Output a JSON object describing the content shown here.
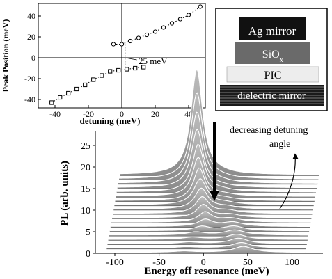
{
  "chart_data": [
    {
      "id": "inset",
      "type": "scatter",
      "xlabel": "detuning (meV)",
      "ylabel": "Peak Position (meV)",
      "xlim": [
        -50,
        50
      ],
      "ylim": [
        -48,
        52
      ],
      "x_ticks": [
        -40,
        -20,
        0,
        20,
        40
      ],
      "x_tick_labels": [
        "-40",
        "-20",
        "0",
        "20",
        "40"
      ],
      "y_ticks": [
        -40,
        -20,
        0,
        20,
        40
      ],
      "y_tick_labels": [
        "-40",
        "-20",
        "0",
        "20",
        "40"
      ],
      "annotation": "25 meV",
      "series": [
        {
          "marker": "circle",
          "points": [
            [
              -5,
              13
            ],
            [
              0,
              13
            ],
            [
              5,
              16
            ],
            [
              10,
              19
            ],
            [
              15,
              22
            ],
            [
              20,
              25
            ],
            [
              25,
              29
            ],
            [
              30,
              33
            ],
            [
              35,
              37
            ],
            [
              40,
              41
            ],
            [
              47,
              49
            ]
          ]
        },
        {
          "marker": "square",
          "points": [
            [
              -42,
              -43
            ],
            [
              -37,
              -38
            ],
            [
              -32,
              -34
            ],
            [
              -27,
              -30
            ],
            [
              -22,
              -26
            ],
            [
              -17,
              -21
            ],
            [
              -12,
              -17
            ],
            [
              -7,
              -13
            ],
            [
              -2,
              -12
            ],
            [
              3,
              -11
            ],
            [
              8,
              -10
            ],
            [
              13,
              -9
            ]
          ]
        }
      ]
    },
    {
      "id": "main",
      "type": "area",
      "xlabel": "Energy off resonance (meV)",
      "ylabel": "PL (arb. units)",
      "xlim": [
        -122,
        135
      ],
      "ylim": [
        0,
        28
      ],
      "x_ticks": [
        -100,
        -50,
        0,
        50,
        100
      ],
      "x_tick_labels": [
        "-100",
        "-50",
        "0",
        "50",
        "100"
      ],
      "y_ticks": [
        0,
        5,
        10,
        15,
        20,
        25
      ],
      "y_tick_labels": [
        "0",
        "5",
        "10",
        "15",
        "20",
        "25"
      ],
      "grid": false,
      "annotation": "decreasing detuning angle",
      "spectra_x_range": [
        -110,
        115
      ],
      "traces": [
        {
          "offset": 0,
          "peaks": [
            {
              "center": -22,
              "height": 0.3,
              "width": 14
            },
            {
              "center": 45,
              "height": 1.4,
              "width": 13
            }
          ]
        },
        {
          "offset": 1,
          "peaks": [
            {
              "center": -20,
              "height": 0.3,
              "width": 14
            },
            {
              "center": 42,
              "height": 1.3,
              "width": 13
            }
          ]
        },
        {
          "offset": 2,
          "peaks": [
            {
              "center": -18,
              "height": 0.4,
              "width": 13
            },
            {
              "center": 38,
              "height": 1.3,
              "width": 13
            }
          ]
        },
        {
          "offset": 3,
          "peaks": [
            {
              "center": -15,
              "height": 0.5,
              "width": 13
            },
            {
              "center": 35,
              "height": 1.2,
              "width": 13
            }
          ]
        },
        {
          "offset": 4,
          "peaks": [
            {
              "center": -12,
              "height": 0.7,
              "width": 12
            },
            {
              "center": 32,
              "height": 1.2,
              "width": 14
            }
          ]
        },
        {
          "offset": 5,
          "peaks": [
            {
              "center": -6,
              "height": 1.0,
              "width": 11
            },
            {
              "center": 30,
              "height": 1.1,
              "width": 14
            }
          ]
        },
        {
          "offset": 6,
          "peaks": [
            {
              "center": -3,
              "height": 1.6,
              "width": 10
            },
            {
              "center": 28,
              "height": 1.0,
              "width": 14
            }
          ]
        },
        {
          "offset": 7,
          "peaks": [
            {
              "center": -4,
              "height": 2.3,
              "width": 9
            },
            {
              "center": 25,
              "height": 0.9,
              "width": 15
            }
          ]
        },
        {
          "offset": 8,
          "peaks": [
            {
              "center": -7,
              "height": 3.0,
              "width": 9
            },
            {
              "center": 23,
              "height": 0.8,
              "width": 15
            }
          ]
        },
        {
          "offset": 9,
          "peaks": [
            {
              "center": -9,
              "height": 3.8,
              "width": 9
            },
            {
              "center": 20,
              "height": 0.7,
              "width": 15
            }
          ]
        },
        {
          "offset": 10,
          "peaks": [
            {
              "center": -11,
              "height": 4.8,
              "width": 9
            },
            {
              "center": 18,
              "height": 0.6,
              "width": 15
            }
          ]
        },
        {
          "offset": 11,
          "peaks": [
            {
              "center": -13,
              "height": 6.0,
              "width": 9
            },
            {
              "center": 16,
              "height": 0.5,
              "width": 15
            }
          ]
        },
        {
          "offset": 12,
          "peaks": [
            {
              "center": -15,
              "height": 7.5,
              "width": 8
            },
            {
              "center": 14,
              "height": 0.5,
              "width": 15
            }
          ]
        },
        {
          "offset": 13,
          "peaks": [
            {
              "center": -17,
              "height": 9.0,
              "width": 8
            },
            {
              "center": 12,
              "height": 0.4,
              "width": 15
            }
          ]
        },
        {
          "offset": 14,
          "peaks": [
            {
              "center": -18,
              "height": 11.0,
              "width": 8
            },
            {
              "center": 10,
              "height": 0.4,
              "width": 15
            }
          ]
        },
        {
          "offset": 15,
          "peaks": [
            {
              "center": -20,
              "height": 13.5,
              "width": 8
            },
            {
              "center": 8,
              "height": 0.3,
              "width": 15
            }
          ]
        },
        {
          "offset": 16,
          "peaks": [
            {
              "center": -21,
              "height": 16.5,
              "width": 8
            },
            {
              "center": 6,
              "height": 0.3,
              "width": 15
            }
          ]
        },
        {
          "offset": 17,
          "peaks": [
            {
              "center": -22,
              "height": 20.0,
              "width": 8
            },
            {
              "center": 4,
              "height": 0.3,
              "width": 15
            }
          ]
        },
        {
          "offset": 18,
          "peaks": [
            {
              "center": -23,
              "height": 24.5,
              "width": 8
            },
            {
              "center": 2,
              "height": 0.3,
              "width": 15
            }
          ]
        }
      ]
    }
  ],
  "structure_diagram": {
    "layers": [
      {
        "label": "Ag mirror",
        "fill": "#111111",
        "text_color": "#ffffff"
      },
      {
        "label": "SiOx",
        "fill": "#6a6a6a",
        "text_color": "#ffffff"
      },
      {
        "label": "PIC",
        "fill": "#ededed",
        "text_color": "#000000"
      },
      {
        "label": "dielectric mirror",
        "fill": "#3a3a3a",
        "text_color": "#ffffff"
      }
    ]
  }
}
